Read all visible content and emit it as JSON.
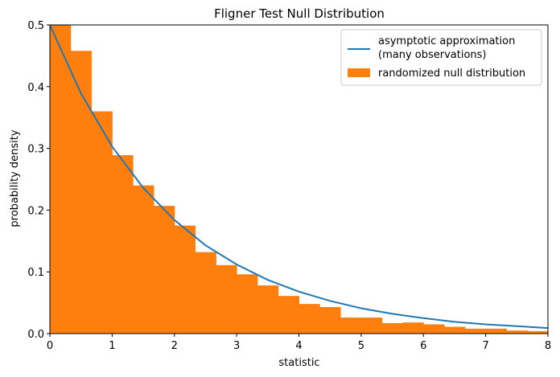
{
  "chart_data": {
    "type": "bar",
    "title": "Fligner Test Null Distribution",
    "xlabel": "statistic",
    "ylabel": "probability density",
    "xlim": [
      0,
      8
    ],
    "ylim": [
      0,
      0.5
    ],
    "x_ticks": [
      0,
      1,
      2,
      3,
      4,
      5,
      6,
      7,
      8
    ],
    "y_ticks": [
      0.0,
      0.1,
      0.2,
      0.3,
      0.4,
      0.5
    ],
    "y_tick_labels": [
      "0.0",
      "0.1",
      "0.2",
      "0.3",
      "0.4",
      "0.5"
    ],
    "grid": false,
    "legend_position": "top-right",
    "histogram": {
      "name": "randomized null distribution",
      "color": "#ff7f0e",
      "bin_edges": [
        0,
        0.333,
        0.667,
        1.0,
        1.333,
        1.667,
        2.0,
        2.333,
        2.667,
        3.0,
        3.333,
        3.667,
        4.0,
        4.333,
        4.667,
        5.0,
        5.333,
        5.667,
        6.0,
        6.333,
        6.667,
        7.0,
        7.333,
        7.667,
        8.0
      ],
      "values": [
        0.502,
        0.458,
        0.36,
        0.289,
        0.24,
        0.207,
        0.175,
        0.132,
        0.111,
        0.096,
        0.078,
        0.061,
        0.048,
        0.043,
        0.026,
        0.026,
        0.017,
        0.018,
        0.015,
        0.011,
        0.008,
        0.008,
        0.005,
        0.004
      ]
    },
    "curve": {
      "name_lines": [
        "asymptotic approximation",
        "(many observations)"
      ],
      "color": "#1f77b4",
      "x": [
        0,
        0.5,
        1.0,
        1.5,
        2.0,
        2.5,
        3.0,
        3.5,
        4.0,
        4.5,
        5.0,
        5.5,
        6.0,
        6.5,
        7.0,
        7.5,
        8.0
      ],
      "y": [
        0.5,
        0.389,
        0.303,
        0.236,
        0.184,
        0.143,
        0.112,
        0.087,
        0.068,
        0.053,
        0.041,
        0.032,
        0.025,
        0.019,
        0.015,
        0.012,
        0.009
      ]
    }
  }
}
